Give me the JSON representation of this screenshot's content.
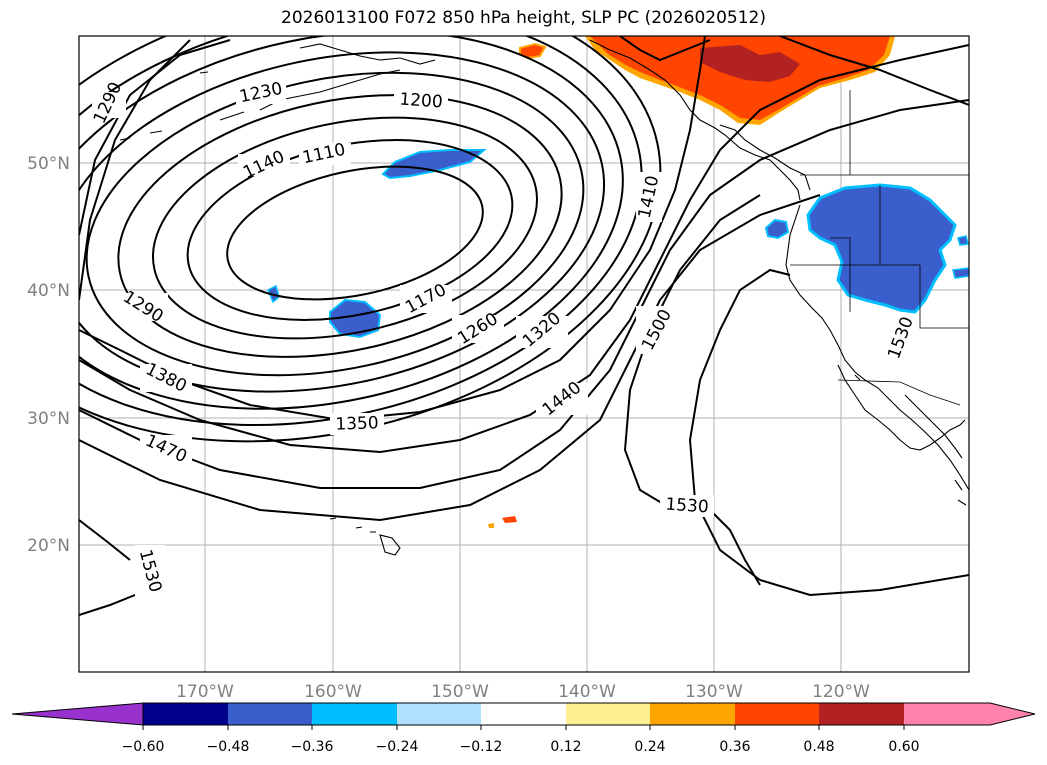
{
  "title": "2026013100 F072 850 hPa height, SLP PC (2026020512)",
  "longitude_labels": [
    "170°W",
    "160°W",
    "150°W",
    "140°W",
    "130°W",
    "120°W"
  ],
  "latitude_labels": [
    "50°N",
    "40°N",
    "30°N",
    "20°N"
  ],
  "contour_labels": [
    "1290",
    "1230",
    "1200",
    "1140",
    "1110",
    "1410",
    "1290",
    "1170",
    "1260",
    "1320",
    "1500",
    "1530",
    "1380",
    "1440",
    "1350",
    "1470",
    "1530",
    "1530"
  ],
  "colorbar": {
    "ticks": [
      "−0.60",
      "−0.48",
      "−0.36",
      "−0.24",
      "−0.12",
      "0.12",
      "0.24",
      "0.36",
      "0.48",
      "0.60"
    ],
    "colors": [
      "#9932cc",
      "#00008b",
      "#3a5fcd",
      "#00bfff",
      "#b0e2ff",
      "#ffffff",
      "#fff08f",
      "#ffa500",
      "#ff4500",
      "#b22222",
      "#ff82ab",
      "#ff82ab"
    ]
  },
  "map": {
    "extent_lon": [
      -180,
      -110
    ],
    "extent_lat": [
      10,
      60
    ],
    "field": "850 hPa height (m) contours, SLP pattern correlation shading",
    "gridlines": true
  }
}
